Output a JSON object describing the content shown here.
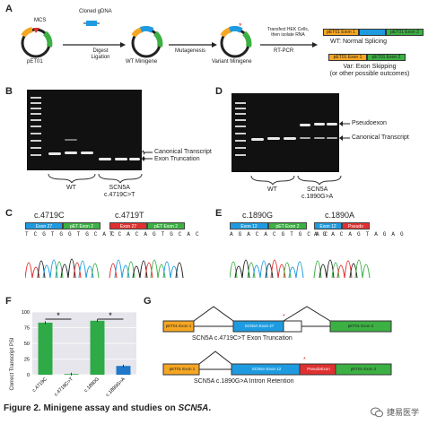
{
  "panels": {
    "a": "A",
    "b": "B",
    "c": "C",
    "d": "D",
    "e": "E",
    "f": "F",
    "g": "G"
  },
  "panel_a": {
    "mcs": "MCS",
    "vector": "pET01",
    "cloned_gdna": "Cloned gDNA",
    "digest_ligation": "Digest\nLigation",
    "wt_minigene": "WT Minigene",
    "mutagenesis": "Mutagenesis",
    "variant_minigene": "Variant Minigene",
    "transfect": "Transfect HEK Cells,\nthen isolate RNA",
    "rt_pcr": "RT-PCR",
    "exon1": "pET01 Exon 1",
    "exon2": "pET01 Exon 2",
    "wt_outcome": "WT: Normal Splicing",
    "var_outcome": "Var: Exon Skipping\n(or other possible outcomes)"
  },
  "panel_b": {
    "canonical": "Canonical Transcript",
    "truncation": "Exon Truncation",
    "wt": "WT",
    "variant": "SCN5A\nc.4719C>T"
  },
  "panel_d": {
    "pseudoexon": "Pseudoexon",
    "canonical": "Canonical Transcript",
    "wt": "WT",
    "variant": "SCN5A\nc.1890G>A"
  },
  "panel_c": {
    "left_title": "c.4719C",
    "right_title": "c.4719T",
    "left_bar": [
      "Exon 27",
      "pET Exon 2"
    ],
    "right_bar": [
      "Exon 27",
      "pET Exon 2"
    ],
    "left_seq": "T C G T G G T G C A C",
    "right_seq": "T C A C A G T G C A C"
  },
  "panel_e": {
    "left_title": "c.1890G",
    "right_title": "c.1890A",
    "left_bar": [
      "Exon 12",
      "pET Exon 2"
    ],
    "right_bar": [
      "Exon 12",
      "Pseudo"
    ],
    "left_seq": "A G A C A C G T G C A C",
    "right_seq": "A G A C A G T A G A G"
  },
  "panel_g": {
    "exon1": "pET01 Exon 1",
    "exon2": "pET01 Exon 2",
    "scn5a_27": "SCN5A Exon 27",
    "scn5a_12": "SCN5A Exon 12",
    "pseudo": "PseudoExon",
    "label_1": "SCN5A c.4719C>T Exon Truncation",
    "label_2": "SCN5A c.1890G>A Intron Retention"
  },
  "chart_data": {
    "type": "bar",
    "categories": [
      "c.4719C",
      "c.4719C>T",
      "c.1890G",
      "c.1890G>A"
    ],
    "values": [
      83,
      1,
      86,
      14
    ],
    "ylabel": "Correct Transcript PSI",
    "ylim": [
      0,
      100
    ],
    "yticks": [
      0,
      25,
      50,
      75,
      100
    ],
    "significance": [
      "*",
      "*"
    ],
    "colors": [
      "#2eaa46",
      "#2eaa46",
      "#2eaa46",
      "#1f78c8"
    ]
  },
  "caption": {
    "prefix": "Figure 2. Minigene assay and studies on ",
    "gene": "SCN5A",
    "suffix": "."
  },
  "watermark": "捷易医学",
  "colors": {
    "exon_orange": "#f5a623",
    "exon_green": "#3cb043",
    "exon_blue": "#1e9be0",
    "exon_red": "#e03030",
    "gel": "#111111"
  }
}
